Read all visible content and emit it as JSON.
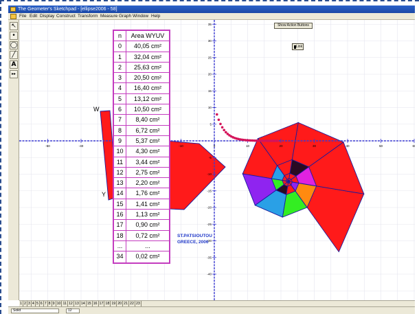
{
  "window": {
    "title": "The Geometer's Sketchpad - [ellipse2006 - 58]"
  },
  "menu": [
    "File",
    "Edit",
    "Display",
    "Construct",
    "Transform",
    "Measure",
    "Graph",
    "Window",
    "Help"
  ],
  "tools": [
    {
      "glyph": "↖",
      "name": "selection-arrow-tool-icon"
    },
    {
      "glyph": "•",
      "name": "point-tool-icon"
    },
    {
      "glyph": "◯",
      "name": "compass-tool-icon"
    },
    {
      "glyph": "╱",
      "name": "straightedge-tool-icon"
    },
    {
      "glyph": "A",
      "name": "text-tool-icon"
    },
    {
      "glyph": "▸▸",
      "name": "custom-tool-icon"
    }
  ],
  "table": {
    "header": {
      "n": "n",
      "area": "Area WYUV"
    },
    "rows": [
      {
        "n": "0",
        "area": "40,05 cm²"
      },
      {
        "n": "1",
        "area": "32,04 cm²"
      },
      {
        "n": "2",
        "area": "25,63 cm²"
      },
      {
        "n": "3",
        "area": "20,50 cm²"
      },
      {
        "n": "4",
        "area": "16,40 cm²"
      },
      {
        "n": "5",
        "area": "13,12 cm²"
      },
      {
        "n": "6",
        "area": "10,50 cm²"
      },
      {
        "n": "7",
        "area": "8,40 cm²"
      },
      {
        "n": "8",
        "area": "6,72 cm²"
      },
      {
        "n": "9",
        "area": "5,37 cm²"
      },
      {
        "n": "10",
        "area": "4,30 cm²"
      },
      {
        "n": "11",
        "area": "3,44 cm²"
      },
      {
        "n": "12",
        "area": "2,75 cm²"
      },
      {
        "n": "13",
        "area": "2,20 cm²"
      },
      {
        "n": "14",
        "area": "1,76 cm²"
      },
      {
        "n": "15",
        "area": "1,41 cm²"
      },
      {
        "n": "16",
        "area": "1,13 cm²"
      },
      {
        "n": "17",
        "area": "0,90 cm²"
      },
      {
        "n": "18",
        "area": "0,72 cm²"
      },
      {
        "n": "...",
        "area": "..."
      },
      {
        "n": "34",
        "area": "0,02 cm²"
      }
    ]
  },
  "buttons": {
    "show": "Show Action Buttons",
    "link": "Link"
  },
  "credit": {
    "line1": "ST.PATSIOUTOU",
    "line2": "GREECE, 2006"
  },
  "point_labels": {
    "w": "W",
    "y": "Y"
  },
  "axis": {
    "x_ticks": [
      -50,
      -40,
      -30,
      -20,
      -10,
      0,
      10,
      20,
      30,
      40,
      50,
      60
    ],
    "y_ticks": [
      35,
      30,
      25,
      20,
      15,
      10,
      5,
      -5,
      -10,
      -15,
      -20,
      -25,
      -30,
      -35,
      -40
    ]
  },
  "pages": [
    "1",
    "2",
    "3",
    "4",
    "5",
    "6",
    "7",
    "8",
    "9",
    "10",
    "11",
    "12",
    "13",
    "14",
    "15",
    "16",
    "17",
    "18",
    "19",
    "20",
    "21",
    "22",
    "23"
  ],
  "status": {
    "style": "Solid",
    "size": "12"
  },
  "colors": {
    "sector_main": "#ff1a1a",
    "sector_purple": "#8f24f0",
    "sector_cyan": "#2aa0e6",
    "sector_green": "#33ee22",
    "sector_orange": "#ff8a10",
    "sector_magenta": "#e022e0",
    "sector_dark": "#2a0a22",
    "edge": "#1a1a9c",
    "axis": "#3a3ad0",
    "grid": "#e4e4ee",
    "points": "#d4145a",
    "table_border": "#c33bbf"
  }
}
